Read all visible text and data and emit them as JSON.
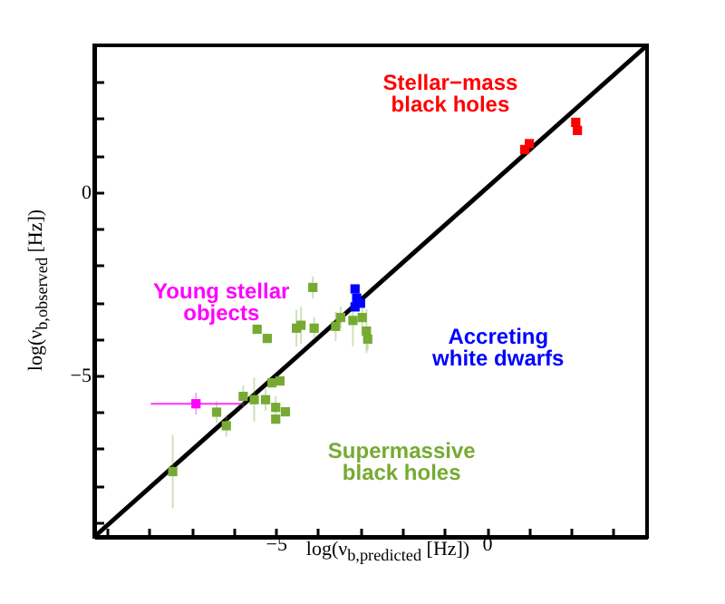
{
  "chart_data": {
    "type": "scatter",
    "xlabel": "log(ν$_{b,predicted}$ [Hz])",
    "ylabel": "log(ν$_{b,observed}$ [Hz])",
    "xlim": [
      -9.3,
      3.8
    ],
    "ylim": [
      -9.4,
      4
    ],
    "xticks": [
      {
        "value": -9,
        "label": null
      },
      {
        "value": -8,
        "label": null
      },
      {
        "value": -7,
        "label": null
      },
      {
        "value": -6,
        "label": null
      },
      -5,
      {
        "value": -4,
        "label": null
      },
      {
        "value": -3,
        "label": null
      },
      {
        "value": -2,
        "label": null
      },
      {
        "value": -1,
        "label": null
      },
      0,
      {
        "value": 1,
        "label": null
      },
      {
        "value": 2,
        "label": null
      },
      {
        "value": 3,
        "label": null
      }
    ],
    "yticks": [
      {
        "value": -9,
        "label": null
      },
      {
        "value": -8,
        "label": null
      },
      {
        "value": -7,
        "label": null
      },
      {
        "value": -6,
        "label": null
      },
      -5,
      {
        "value": -4,
        "label": null
      },
      {
        "value": -3,
        "label": null
      },
      {
        "value": -2,
        "label": null
      },
      {
        "value": -1,
        "label": null
      },
      0,
      {
        "value": 1,
        "label": null
      },
      {
        "value": 2,
        "label": null
      },
      {
        "value": 3,
        "label": null
      }
    ],
    "marker": "square",
    "series": [
      {
        "type": "line",
        "marker": "none",
        "color": "#000000",
        "x": [
          -9.3,
          3.8
        ],
        "values": [
          -9.4,
          4
        ]
      },
      {
        "name": "Supermassive\nblack holes",
        "color": "#77aa33",
        "x": [
          -4.12,
          -5.44,
          -5.2,
          -4.51,
          -4.4,
          -4.09,
          -3.58,
          -3.46,
          -3.17,
          -2.95,
          -2.85,
          -2.82,
          -5.09,
          -4.9,
          -5.77,
          -5.51,
          -5.24,
          -5.0,
          -4.77,
          -5.0,
          -6.4,
          -6.17,
          -7.44
        ],
        "values": [
          -2.6,
          -3.74,
          -3.99,
          -3.71,
          -3.63,
          -3.71,
          -3.66,
          -3.42,
          -3.5,
          -3.42,
          -3.79,
          -4.01,
          -5.2,
          -5.15,
          -5.57,
          -5.66,
          -5.66,
          -5.87,
          -5.99,
          -6.19,
          -6.0,
          -6.37,
          -7.62
        ],
        "errors": [
          0.3,
          null,
          null,
          0.5,
          0.5,
          0.3,
          0.4,
          0.3,
          0.7,
          0.5,
          0.6,
          0.3,
          null,
          null,
          0.3,
          0.6,
          0.3,
          0.3,
          null,
          null,
          0.3,
          0.3,
          1.0
        ]
      },
      {
        "name": "Young stellar\nobjects",
        "color": "#ff00ff",
        "x": [
          -6.89
        ],
        "values": [
          -5.77
        ],
        "errors": [
          0.3
        ],
        "xerrors": [
          [
            -7.96,
            -5.8
          ]
        ]
      },
      {
        "name": "Accreting\nwhite dwarfs",
        "color": "#0000ff",
        "x": [
          -3.12,
          -3.08,
          -2.99,
          -3.12
        ],
        "values": [
          -2.64,
          -2.89,
          -3.03,
          -3.13
        ]
      },
      {
        "name": "Stellar−mass\nblack holes",
        "color": "#ff0000",
        "x": [
          0.9,
          1.01,
          2.11,
          2.15
        ],
        "values": [
          1.16,
          1.32,
          1.9,
          1.68
        ]
      }
    ]
  }
}
